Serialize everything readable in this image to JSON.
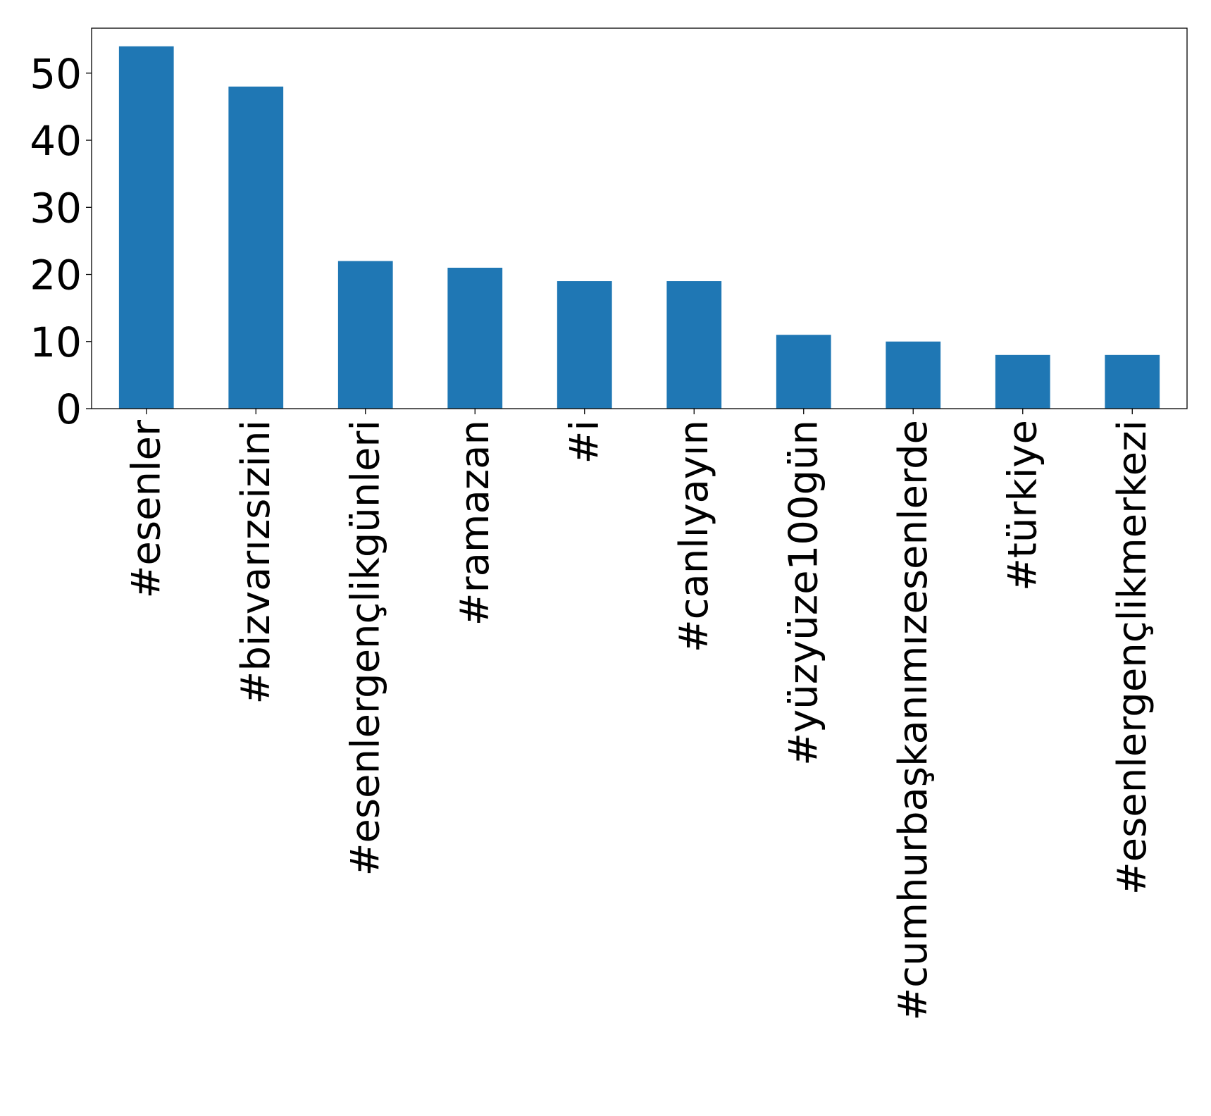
{
  "chart_data": {
    "type": "bar",
    "title": "",
    "xlabel": "",
    "ylabel": "",
    "categories": [
      "#esenler",
      "#bizvarızsizini",
      "#esenlergençlikgünleri",
      "#ramazan",
      "#i",
      "#canlıyayın",
      "#yüzyüze100gün",
      "#cumhurbaşkanımızesenlerde",
      "#türkiye",
      "#esenlergençlikmerkezi"
    ],
    "values": [
      54,
      48,
      22,
      21,
      19,
      19,
      11,
      10,
      8,
      8
    ],
    "ylim": [
      0,
      56.7
    ],
    "yticks": [
      0,
      10,
      20,
      30,
      40,
      50
    ],
    "grid": false,
    "legend": "none",
    "colors": {
      "bar": "#1f77b4",
      "axis": "#000000",
      "background": "#ffffff"
    }
  }
}
